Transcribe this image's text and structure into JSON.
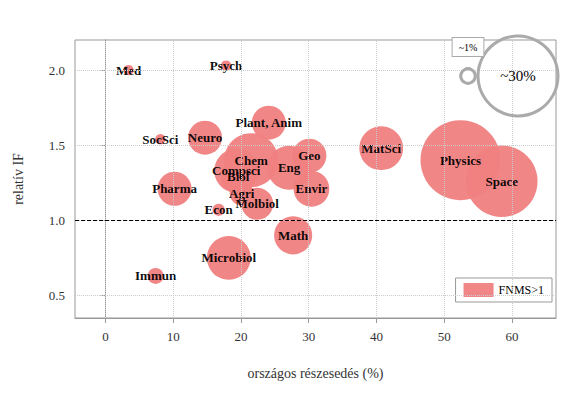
{
  "chart_data": {
    "type": "scatter",
    "x_label": "országos részesedés (%)",
    "y_label": "relatív IF",
    "xlim": [
      -4.5,
      66.5
    ],
    "xticks": [
      0,
      10,
      20,
      30,
      40,
      50,
      60
    ],
    "ylim": [
      0.35,
      2.2
    ],
    "yticks": [
      {
        "value": 0.5,
        "label": "0.5"
      },
      {
        "value": 1,
        "label": "1.0"
      },
      {
        "value": 1.5,
        "label": "1.5"
      },
      {
        "value": 2,
        "label": "2.0"
      }
    ],
    "grid": true,
    "legend": "bottom-right",
    "reference_line": {
      "value": 1,
      "line_style": "dashed"
    },
    "size_legend": [
      {
        "value": 1,
        "label": "~1%"
      },
      {
        "value": 30,
        "label": "~30%"
      }
    ],
    "series": [
      {
        "name": "FNMS>1",
        "color": "#f08080",
        "labels": [
          "Physics",
          "Space",
          "Chem",
          "Compsci",
          "Eng",
          "MatSci",
          "Microbiol",
          "Math",
          "Envir",
          "Plant, Anim",
          "Neuro",
          "Geo",
          "Pharma",
          "Biol",
          "Molbiol",
          "Agri",
          "Immun",
          "Econ",
          "Med",
          "Psych",
          "SocSci"
        ],
        "x": [
          52.4,
          58.5,
          21.5,
          19.3,
          27.1,
          40.7,
          18.2,
          27.7,
          30.4,
          24.1,
          14.7,
          30.1,
          10.2,
          19.6,
          22.4,
          20.1,
          7.4,
          16.7,
          3.4,
          17.8,
          8.1
        ],
        "values": [
          1.4,
          1.26,
          1.4,
          1.33,
          1.35,
          1.48,
          0.75,
          0.9,
          1.21,
          1.65,
          1.55,
          1.43,
          1.21,
          1.29,
          1.11,
          1.18,
          0.63,
          1.07,
          2.0,
          2.03,
          1.54
        ],
        "sizes": [
          30,
          24,
          13.7,
          9,
          9,
          9,
          9,
          6.8,
          6,
          5.4,
          5.4,
          5.4,
          5.4,
          5.4,
          4.8,
          2.7,
          1.2,
          0.7,
          0.5,
          0.5,
          0.5
        ]
      }
    ]
  }
}
